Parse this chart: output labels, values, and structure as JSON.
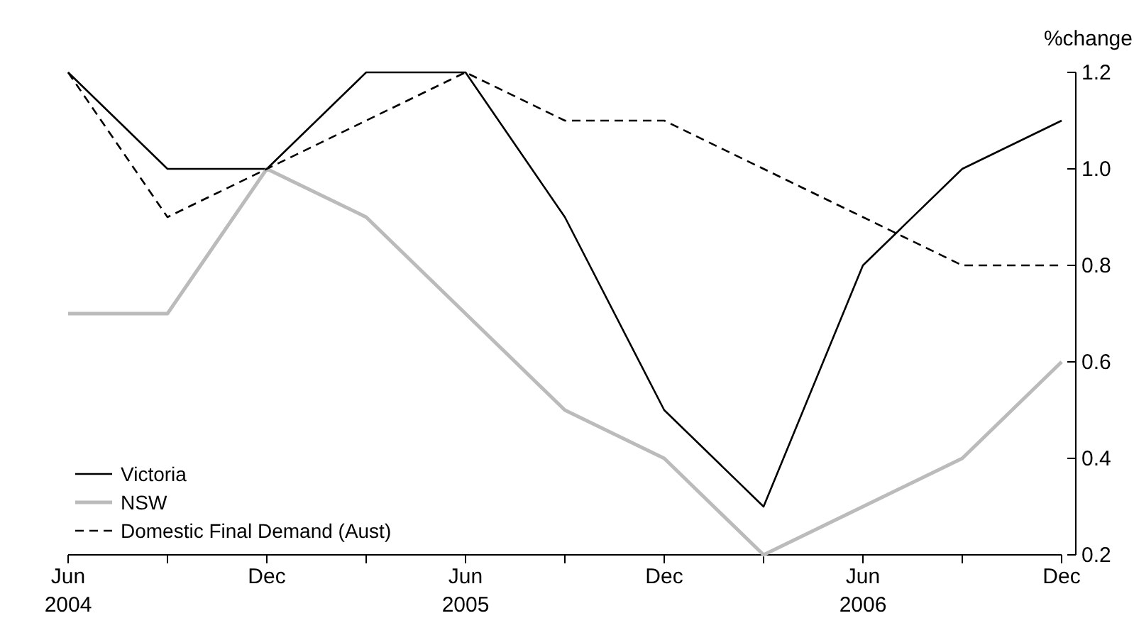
{
  "chart_data": {
    "type": "line",
    "ylabel": "%change",
    "categories": [
      "Jun\n2004",
      null,
      "Dec",
      null,
      "Jun\n2005",
      null,
      "Dec",
      null,
      "Jun\n2006",
      null,
      "Dec"
    ],
    "ylim": [
      0.2,
      1.2
    ],
    "yticks": [
      0.2,
      0.4,
      0.6,
      0.8,
      {
        "value": 1,
        "label": "1.0"
      },
      {
        "value": 1.2,
        "label": "1.2"
      }
    ],
    "grid": false,
    "legend": "bottom left",
    "marker": "none",
    "series": [
      {
        "name": "Victoria",
        "color": "#000000",
        "line_style": "solid",
        "values": [
          1.2,
          1.0,
          1.0,
          1.2,
          1.2,
          0.9,
          0.5,
          0.3,
          0.8,
          1.0,
          1.1
        ]
      },
      {
        "name": "NSW",
        "color": "#bbbbbb",
        "line_style": "solid",
        "values": [
          0.7,
          0.7,
          1.0,
          0.9,
          0.7,
          0.5,
          0.4,
          0.2,
          0.3,
          0.4,
          0.6
        ]
      },
      {
        "name": "Domestic Final Demand (Aust)",
        "color": "#000000",
        "line_style": "dashed",
        "values": [
          1.2,
          0.9,
          1.0,
          1.1,
          1.2,
          1.1,
          1.1,
          1.0,
          0.9,
          0.8,
          0.8
        ]
      }
    ]
  }
}
